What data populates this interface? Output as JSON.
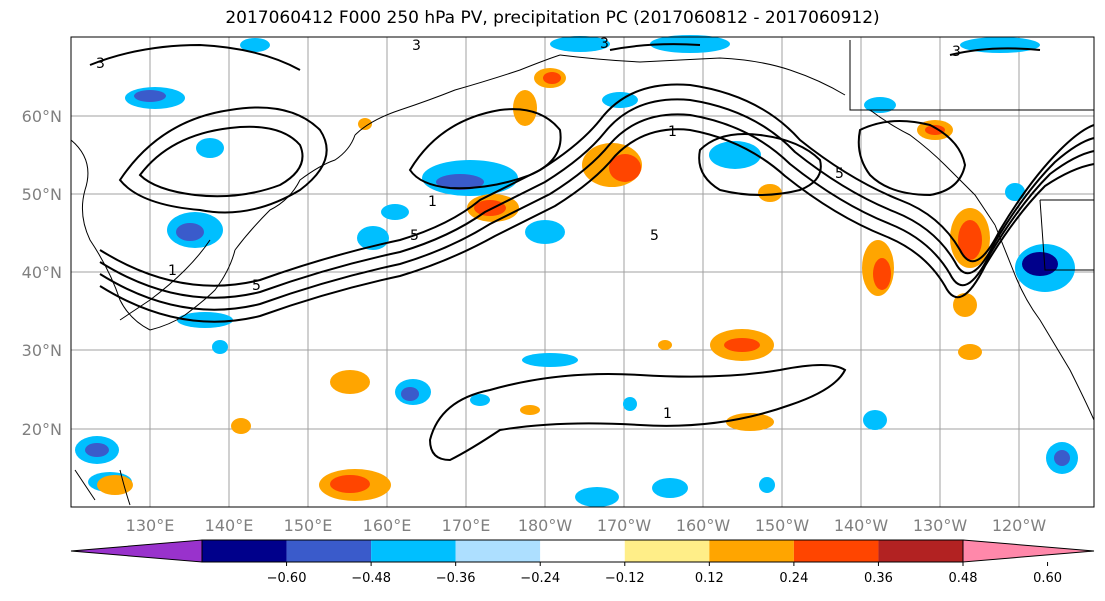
{
  "title": "2017060412 F000 250 hPa PV, precipitation PC (2017060812 - 2017060912)",
  "lat_labels": [
    "60°N",
    "50°N",
    "40°N",
    "30°N",
    "20°N"
  ],
  "lon_labels": [
    "130°E",
    "140°E",
    "150°E",
    "160°E",
    "170°E",
    "180°W",
    "170°W",
    "160°W",
    "150°W",
    "140°W",
    "130°W",
    "120°W"
  ],
  "contour_labels": [
    "3",
    "3",
    "3",
    "3",
    "1",
    "1",
    "1",
    "5",
    "5",
    "5",
    "5",
    "1"
  ],
  "colorbar": {
    "colors": [
      "#9932CC",
      "#00008B",
      "#3A5BCB",
      "#00BFFF",
      "#ADDFFF",
      "#FFFFFF",
      "#FFEE88",
      "#FFA500",
      "#FF4500",
      "#B22222",
      "#FF88AA"
    ],
    "tick_labels": [
      "−0.60",
      "−0.48",
      "−0.36",
      "−0.24",
      "−0.12",
      "0.12",
      "0.24",
      "0.36",
      "0.48",
      "0.60"
    ]
  }
}
